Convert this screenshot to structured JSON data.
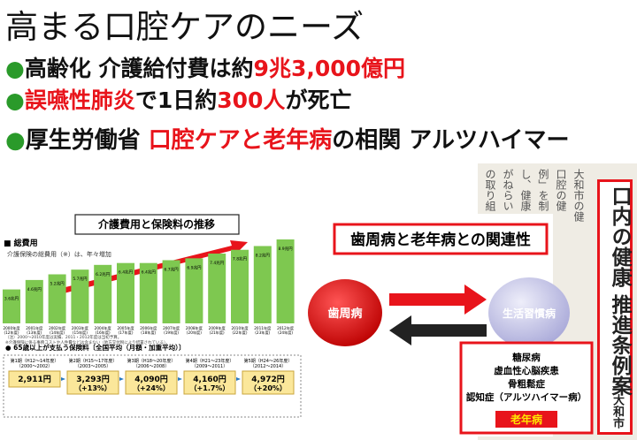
{
  "title": "高まる口腔ケアのニーズ",
  "bullets": [
    {
      "marker": "●",
      "segments": [
        {
          "text": "高齢化 介護給付費は約",
          "red": false
        },
        {
          "text": "9兆3,000億円",
          "red": true
        }
      ]
    },
    {
      "marker": "●",
      "segments": [
        {
          "text": "誤嚥性肺炎",
          "red": true
        },
        {
          "text": "で1日約",
          "red": false
        },
        {
          "text": "300人",
          "red": true
        },
        {
          "text": "が死亡",
          "red": false
        }
      ]
    },
    {
      "marker": "●",
      "segments": [
        {
          "text": "厚生労働省 ",
          "red": false
        },
        {
          "text": "口腔ケアと老年病",
          "red": true
        },
        {
          "text": "の相関 アルツハイマー",
          "red": false
        }
      ]
    }
  ],
  "cost_chart": {
    "title": "介護費用と保険料の推移",
    "section": "■ 総費用",
    "note": "介護保険の総費用（※）は、年々増加",
    "color": "#7ec850",
    "years": [
      "2000年度",
      "2001年度",
      "2002年度",
      "2003年度",
      "2004年度",
      "2005年度",
      "2006年度",
      "2007年度",
      "2008年度",
      "2009年度",
      "2010年度",
      "2011年度",
      "2012年度"
    ],
    "eras": [
      "(12年度)",
      "(13年度)",
      "(14年度)",
      "(15年度)",
      "(16年度)",
      "(17年度)",
      "(18年度)",
      "(19年度)",
      "(20年度)",
      "(21年度)",
      "(22年度)",
      "(23年度)",
      "(24年度)"
    ],
    "values": [
      3.6,
      4.6,
      5.2,
      5.7,
      6.2,
      6.4,
      6.4,
      6.7,
      6.9,
      7.4,
      7.8,
      8.2,
      8.9
    ],
    "value_labels": [
      "3.6兆円",
      "4.6兆円",
      "5.2兆円",
      "5.7兆円",
      "6.2兆円",
      "6.4兆円",
      "6.4兆円",
      "6.7兆円",
      "6.9兆円",
      "7.4兆円",
      "7.8兆円",
      "8.2兆円",
      "8.9兆円"
    ],
    "footnotes": [
      "（注）2000〜2010年度は実績、2011・2012年度は当初予算。",
      "※介護保険に係る事務コストや人件費などは含まない（地方交付税により措置されている）。"
    ]
  },
  "premium": {
    "heading": "● 65歳以上が支払う保険料〔全国平均（月額・加重平均）〕",
    "periods": [
      {
        "name": "第1期（H12〜14年度）",
        "years": "（2000〜2002）",
        "amount": "2,911円"
      },
      {
        "name": "第2期（H15〜17年度）",
        "years": "（2003〜2005）",
        "amount": "3,293円",
        "change": "（+13%）"
      },
      {
        "name": "第3期（H18〜20年度）",
        "years": "（2006〜2008）",
        "amount": "4,090円",
        "change": "（+24%）"
      },
      {
        "name": "第4期（H21〜23年度）",
        "years": "（2009〜2011）",
        "amount": "4,160円",
        "change": "（+1.7%）"
      },
      {
        "name": "第5期（H24〜26年度）",
        "years": "（2012〜2014）",
        "amount": "4,972円",
        "change": "（+20%）"
      }
    ]
  },
  "diagram": {
    "title": "歯周病と老年病との関連性",
    "left_node": "歯周病",
    "right_node": "生活習慣病",
    "diseases": [
      "糖尿病",
      "虚血性心脳疾患",
      "骨粗鬆症",
      "認知症（アルツハイマー病）"
    ],
    "group": "老年病"
  },
  "newspaper": {
    "headline": "口内の健康 推進条例案",
    "byline": "大和市",
    "columns": [
      "大和市の健",
      "口腔の健",
      "例」を制",
      "し、健康",
      "がねらい",
      "の取り組"
    ]
  }
}
